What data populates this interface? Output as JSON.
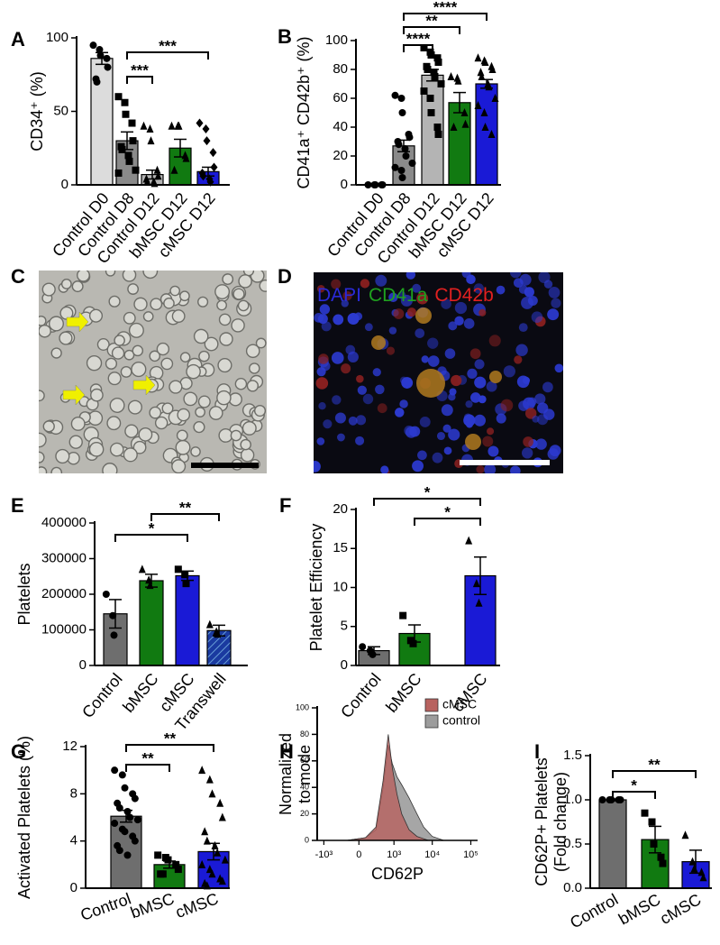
{
  "chart_data": [
    {
      "type": "bar",
      "panel": "A",
      "ylabel": [
        "CD34⁺ (%)"
      ],
      "categories": [
        "Control D0",
        "Control D8",
        "Control D12",
        "bMSC D12",
        "cMSC D12"
      ],
      "values": [
        86,
        30,
        7,
        25,
        9
      ],
      "errors": [
        4,
        6,
        3,
        6,
        3
      ],
      "colors": [
        "#dcdcdc",
        "#8a8a8a",
        "#b4b4b4",
        "#117a11",
        "#1a1ad6"
      ],
      "markers": [
        "circle",
        "square",
        "triangle",
        "triangle",
        "diamond"
      ],
      "points": [
        [
          95,
          92,
          88,
          86,
          80,
          72,
          70
        ],
        [
          60,
          56,
          48,
          42,
          30,
          26,
          24,
          20,
          16,
          10,
          8
        ],
        [
          40,
          38,
          30,
          10,
          6,
          4,
          2,
          2,
          1
        ],
        [
          40,
          40,
          40,
          20,
          18,
          10
        ],
        [
          42,
          38,
          30,
          22,
          12,
          8,
          6,
          4,
          2
        ]
      ],
      "ylim": [
        0,
        100
      ],
      "yticks": [
        0,
        50,
        100
      ],
      "comparisons": [
        {
          "from": "Control D8",
          "to": "Control D12",
          "label": "***"
        },
        {
          "from": "Control D8",
          "to": "cMSC D12",
          "label": "***"
        }
      ]
    },
    {
      "type": "bar",
      "panel": "B",
      "ylabel": [
        "CD41a⁺ CD42b⁺ (%)"
      ],
      "categories": [
        "Control D0",
        "Control D8",
        "Control D12",
        "bMSC D12",
        "cMSC D12"
      ],
      "values": [
        0,
        27,
        76,
        57,
        70
      ],
      "errors": [
        0.2,
        4,
        4,
        7,
        3
      ],
      "colors": [
        "#dcdcdc",
        "#8a8a8a",
        "#b4b4b4",
        "#117a11",
        "#1a1ad6"
      ],
      "markers": [
        "circle",
        "circle",
        "square",
        "triangle",
        "triangle"
      ],
      "points": [
        [
          0,
          0,
          0,
          0,
          0
        ],
        [
          62,
          60,
          50,
          35,
          33,
          30,
          28,
          25,
          20,
          15,
          12,
          10,
          5
        ],
        [
          95,
          92,
          90,
          88,
          85,
          82,
          80,
          78,
          75,
          70,
          65,
          60,
          50,
          40,
          35
        ],
        [
          75,
          74,
          72,
          50,
          42,
          40
        ],
        [
          88,
          86,
          85,
          82,
          80,
          78,
          75,
          70,
          68,
          60,
          55,
          50,
          40,
          35
        ]
      ],
      "ylim": [
        0,
        100
      ],
      "yticks": [
        0,
        20,
        40,
        60,
        80,
        100
      ],
      "comparisons": [
        {
          "from": "Control D8",
          "to": "Control D12",
          "label": "****"
        },
        {
          "from": "Control D8",
          "to": "bMSC D12",
          "label": "**"
        },
        {
          "from": "Control D8",
          "to": "cMSC D12",
          "label": "****"
        }
      ]
    },
    {
      "type": "bar",
      "panel": "E",
      "ylabel": [
        "Platelets"
      ],
      "categories": [
        "Control",
        "bMSC",
        "cMSC",
        "Transwell"
      ],
      "values": [
        145000,
        238000,
        252000,
        98000
      ],
      "errors": [
        40000,
        18000,
        13000,
        15000
      ],
      "colors": [
        "#6e6e6e",
        "#117a11",
        "#1a1ad6",
        "#1a3aa0"
      ],
      "hatch": [
        false,
        false,
        false,
        true
      ],
      "markers": [
        "circle",
        "triangle",
        "square",
        "triangle"
      ],
      "points": [
        [
          200000,
          140000,
          85000
        ],
        [
          270000,
          240000,
          225000
        ],
        [
          270000,
          255000,
          230000
        ],
        [
          115000,
          95000,
          88000
        ]
      ],
      "ylim": [
        0,
        400000
      ],
      "yticks": [
        0,
        100000,
        200000,
        300000,
        400000
      ],
      "comparisons": [
        {
          "from": "Control",
          "to": "cMSC",
          "label": "*"
        },
        {
          "from": "bMSC",
          "to": "Transwell",
          "label": "**"
        }
      ]
    },
    {
      "type": "bar",
      "panel": "F",
      "ylabel": [
        "Platelet Efficiency"
      ],
      "categories": [
        "Control",
        "bMSC",
        "cMSC"
      ],
      "values": [
        1.9,
        4.1,
        11.5
      ],
      "errors": [
        0.5,
        1.1,
        2.4
      ],
      "colors": [
        "#6e6e6e",
        "#117a11",
        "#1a1ad6"
      ],
      "markers": [
        "circle",
        "square",
        "triangle"
      ],
      "points": [
        [
          2.4,
          1.9,
          1.4
        ],
        [
          6.4,
          3.2,
          2.8
        ],
        [
          16,
          10.5,
          8
        ]
      ],
      "ylim": [
        0,
        20
      ],
      "yticks": [
        0,
        5,
        10,
        15,
        20
      ],
      "comparisons": [
        {
          "from": "bMSC",
          "to": "cMSC",
          "label": "*"
        },
        {
          "from": "Control",
          "to": "cMSC",
          "label": "*"
        }
      ]
    },
    {
      "type": "bar",
      "panel": "G",
      "ylabel": [
        "Activated Platelets (%)"
      ],
      "categories": [
        "Control",
        "bMSC",
        "cMSC"
      ],
      "values": [
        6.1,
        2.0,
        3.1
      ],
      "errors": [
        0.5,
        0.3,
        0.7
      ],
      "colors": [
        "#6e6e6e",
        "#117a11",
        "#1a1ad6"
      ],
      "markers": [
        "circle",
        "square",
        "triangle"
      ],
      "points": [
        [
          10,
          9.6,
          8.5,
          8,
          7.6,
          7.2,
          6.8,
          6.5,
          6,
          5.8,
          5.5,
          5,
          4.8,
          4.4,
          4,
          3.6,
          3.2,
          2.8
        ],
        [
          2.8,
          2.6,
          2.4,
          2,
          1.6,
          1.2,
          1.2
        ],
        [
          10,
          9.2,
          8,
          7.2,
          6,
          4.8,
          4,
          3.6,
          3,
          2.4,
          2,
          1.6,
          1.2,
          0.8,
          0.6,
          0.4,
          0.2
        ]
      ],
      "ylim": [
        0,
        12
      ],
      "yticks": [
        0,
        4,
        8,
        12
      ],
      "comparisons": [
        {
          "from": "Control",
          "to": "bMSC",
          "label": "**"
        },
        {
          "from": "Control",
          "to": "cMSC",
          "label": "**"
        }
      ]
    },
    {
      "type": "histogram-overlay",
      "panel": "H",
      "ylabel": [
        "Normalized",
        "to mode"
      ],
      "xlabel": "CD62P",
      "series": [
        {
          "name": "cMSC",
          "color": "#b8625f",
          "x": [
            -200,
            100,
            300,
            500,
            700,
            900,
            1200,
            1600,
            2500,
            4000,
            8000
          ],
          "values": [
            0,
            2,
            10,
            45,
            80,
            55,
            35,
            20,
            8,
            3,
            0
          ]
        },
        {
          "name": "control",
          "color": "#9c9c9c",
          "x": [
            -200,
            100,
            300,
            500,
            700,
            900,
            1200,
            1600,
            2500,
            4000,
            6000,
            10000,
            20000
          ],
          "values": [
            0,
            2,
            8,
            40,
            72,
            58,
            48,
            42,
            32,
            20,
            10,
            3,
            0
          ]
        }
      ],
      "xlim": [
        -1500,
        150000
      ],
      "xticks": [
        {
          "value": -1000,
          "label": "-10³"
        },
        0,
        {
          "value": 1000,
          "label": "10³"
        },
        {
          "value": 10000,
          "label": "10⁴"
        },
        {
          "value": 100000,
          "label": "10⁵"
        }
      ],
      "ylim": [
        0,
        100
      ],
      "yticks": [
        0,
        20,
        40,
        60,
        80,
        100
      ],
      "legend": "top-right"
    },
    {
      "type": "bar",
      "panel": "I",
      "ylabel": [
        "CD62P+ Platelets",
        "(Fold change)"
      ],
      "categories": [
        "Control",
        "bMSC",
        "cMSC"
      ],
      "values": [
        1.0,
        0.55,
        0.3
      ],
      "errors": [
        0.01,
        0.15,
        0.13
      ],
      "colors": [
        "#6e6e6e",
        "#117a11",
        "#1a1ad6"
      ],
      "markers": [
        "circle",
        "square",
        "triangle"
      ],
      "points": [
        [
          1,
          1,
          1,
          1,
          1
        ],
        [
          0.85,
          0.75,
          0.5,
          0.35,
          0.28
        ],
        [
          0.6,
          0.3,
          0.22,
          0.18,
          0.12
        ]
      ],
      "ylim": [
        0,
        1.5
      ],
      "yticks": [
        {
          "value": 0,
          "label": "0.0"
        },
        0.5,
        {
          "value": 1,
          "label": "1.0"
        },
        1.5
      ],
      "comparisons": [
        {
          "from": "Control",
          "to": "bMSC",
          "label": "*"
        },
        {
          "from": "Control",
          "to": "cMSC",
          "label": "**"
        }
      ]
    }
  ],
  "images": [
    {
      "panel": "C"
    },
    {
      "panel": "D",
      "labels": [
        {
          "text": "DAPI",
          "color": "#2a2ad8"
        },
        {
          "text": "CD41a",
          "color": "#1fa01f"
        },
        {
          "text": "CD42b",
          "color": "#e02020"
        }
      ]
    }
  ]
}
